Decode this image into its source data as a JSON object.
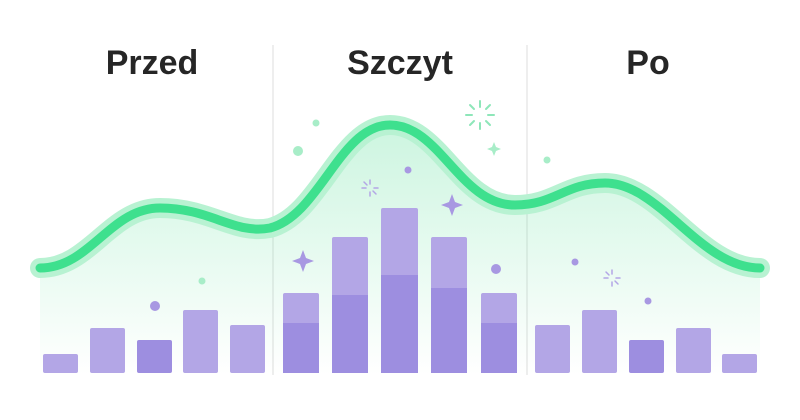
{
  "headings": [
    "Przed",
    "Szczyt",
    "Po"
  ]
}
